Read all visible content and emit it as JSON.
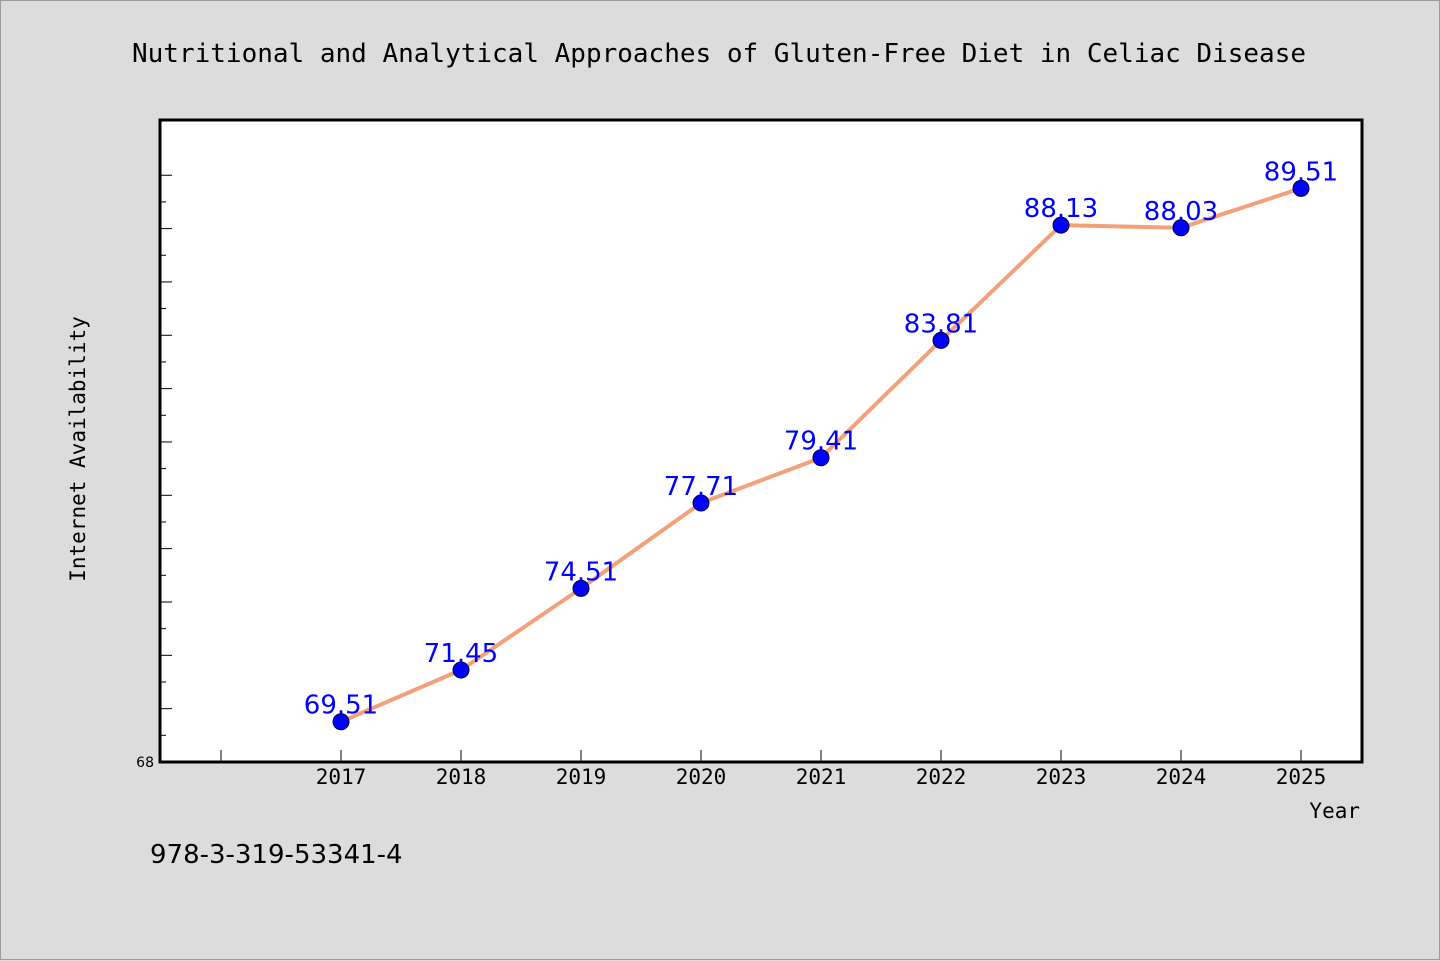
{
  "chart_data": {
    "type": "line",
    "title": "Nutritional and Analytical Approaches of Gluten-Free Diet in Celiac Disease",
    "xlabel": "Year",
    "ylabel": "Internet Availability",
    "x": [
      "2017",
      "2018",
      "2019",
      "2020",
      "2021",
      "2022",
      "2023",
      "2024",
      "2025"
    ],
    "series": [
      {
        "values": [
          69.51,
          71.45,
          74.51,
          77.71,
          79.41,
          83.81,
          88.13,
          88.03,
          89.51
        ],
        "labels": [
          "69.51",
          "71.45",
          "74.51",
          "77.71",
          "79.41",
          "83.81",
          "88.13",
          "88.03",
          "89.51"
        ],
        "line_color": "#f4a07a",
        "marker_color": "#0000ff"
      }
    ],
    "ylim": [
      68,
      92
    ],
    "y_tick_labels": [
      "68"
    ],
    "grid": false,
    "legend": "none",
    "background": "#dcdcdc",
    "plot_background": "#ffffff"
  },
  "footer": {
    "code": "978-3-319-53341-4"
  }
}
